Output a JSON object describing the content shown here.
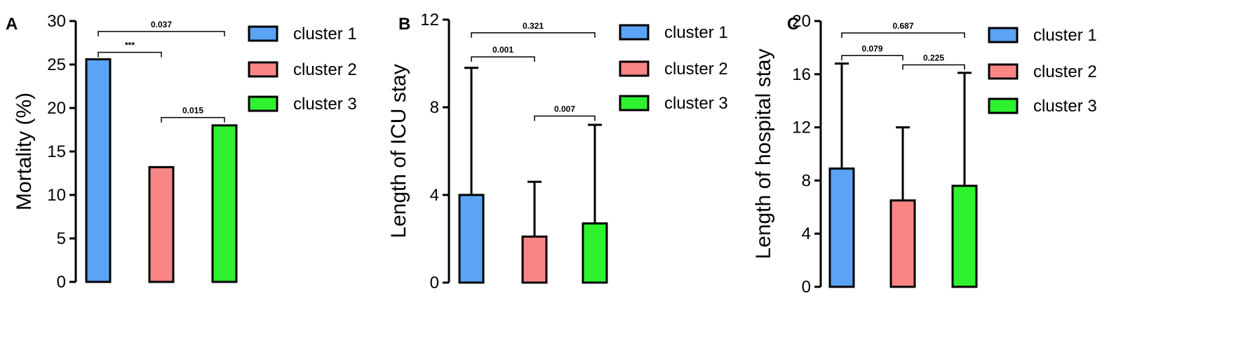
{
  "colors": {
    "cluster1": "#5aa3f5",
    "cluster2": "#fa8585",
    "cluster3": "#2ef22e",
    "axis": "#000000"
  },
  "chart_data": [
    {
      "panel": "A",
      "type": "bar",
      "ylabel": "Mortality (%)",
      "ylim": [
        0,
        30
      ],
      "yticks": [
        0,
        5,
        10,
        15,
        20,
        25,
        30
      ],
      "categories": [
        "cluster 1",
        "cluster 2",
        "cluster 3"
      ],
      "values": [
        25.6,
        13.2,
        18.0
      ],
      "error_upper": [
        null,
        null,
        null
      ],
      "legend": [
        "cluster 1",
        "cluster 2",
        "cluster 3"
      ],
      "legend_position": "right",
      "significance": [
        {
          "from": 0,
          "to": 1,
          "label": "***",
          "level": 26.4
        },
        {
          "from": 0,
          "to": 2,
          "label": "0.037",
          "level": 28.8
        },
        {
          "from": 1,
          "to": 2,
          "label": "0.015",
          "level": 18.9
        }
      ]
    },
    {
      "panel": "B",
      "type": "bar",
      "ylabel": "Length of ICU stay",
      "ylim": [
        0,
        12
      ],
      "yticks": [
        0,
        4,
        8,
        12
      ],
      "categories": [
        "cluster 1",
        "cluster 2",
        "cluster 3"
      ],
      "values": [
        4.0,
        2.1,
        2.7
      ],
      "error_upper": [
        9.8,
        4.6,
        7.2
      ],
      "legend": [
        "cluster 1",
        "cluster 2",
        "cluster 3"
      ],
      "legend_position": "right",
      "significance": [
        {
          "from": 0,
          "to": 1,
          "label": "0.001",
          "level": 10.3
        },
        {
          "from": 0,
          "to": 2,
          "label": "0.321",
          "level": 11.4
        },
        {
          "from": 1,
          "to": 2,
          "label": "0.007",
          "level": 7.6
        }
      ]
    },
    {
      "panel": "C",
      "type": "bar",
      "ylabel": "Length of hospital stay",
      "ylim": [
        0,
        20
      ],
      "yticks": [
        0,
        4,
        8,
        12,
        16,
        20
      ],
      "categories": [
        "cluster 1",
        "cluster 2",
        "cluster 3"
      ],
      "values": [
        8.9,
        6.5,
        7.6
      ],
      "error_upper": [
        16.8,
        12.0,
        16.1
      ],
      "legend": [
        "cluster 1",
        "cluster 2",
        "cluster 3"
      ],
      "legend_position": "right",
      "significance": [
        {
          "from": 0,
          "to": 1,
          "label": "0.079",
          "level": 17.4
        },
        {
          "from": 0,
          "to": 2,
          "label": "0.687",
          "level": 19.1
        },
        {
          "from": 1,
          "to": 2,
          "label": "0.225",
          "level": 16.7
        }
      ]
    }
  ]
}
